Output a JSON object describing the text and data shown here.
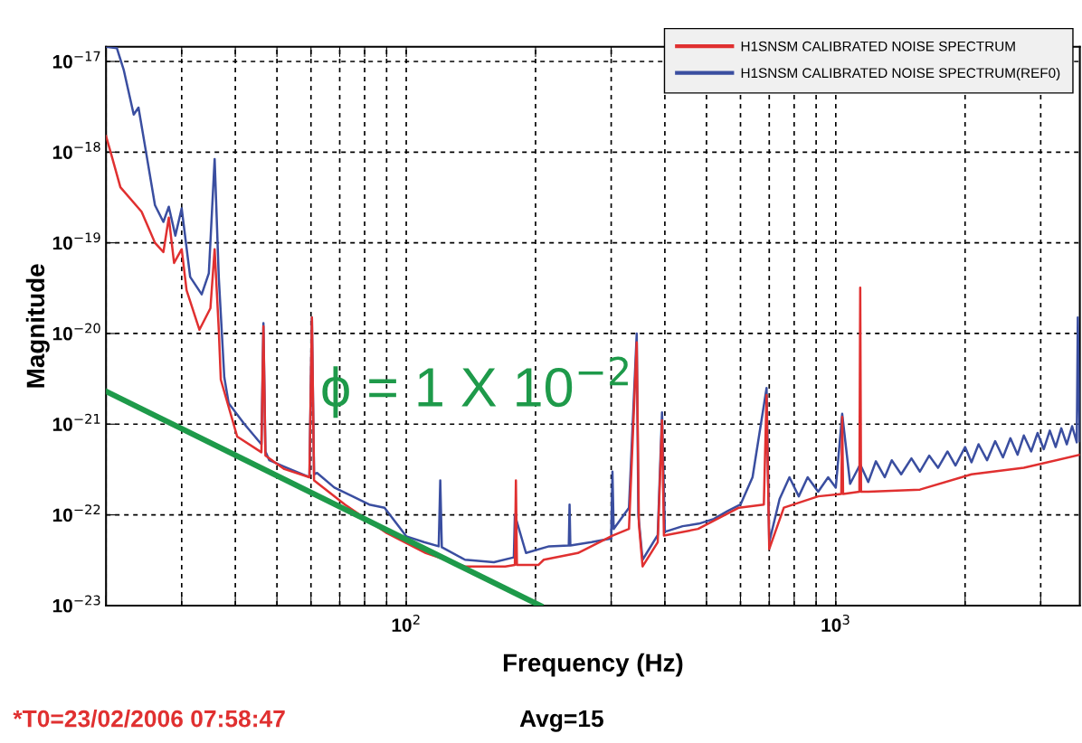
{
  "chart_data": {
    "type": "line",
    "xlabel": "Frequency (Hz)",
    "ylabel": "Magnitude",
    "log": "xy",
    "xlim": [
      20,
      3700
    ],
    "ylim": [
      1e-23,
      1.45e-17
    ],
    "xticks": [
      {
        "value": 20,
        "label": null
      },
      {
        "value": 30,
        "label": null
      },
      {
        "value": 40,
        "label": null
      },
      {
        "value": 50,
        "label": null
      },
      {
        "value": 60,
        "label": null
      },
      {
        "value": 70,
        "label": null
      },
      {
        "value": 80,
        "label": null
      },
      {
        "value": 90,
        "label": null
      },
      {
        "value": 100,
        "label": "10$^{2}$"
      },
      {
        "value": 200,
        "label": null
      },
      {
        "value": 300,
        "label": null
      },
      {
        "value": 400,
        "label": null
      },
      {
        "value": 500,
        "label": null
      },
      {
        "value": 600,
        "label": null
      },
      {
        "value": 700,
        "label": null
      },
      {
        "value": 800,
        "label": null
      },
      {
        "value": 900,
        "label": null
      },
      {
        "value": 1000,
        "label": "10$^{3}$"
      },
      {
        "value": 2000,
        "label": null
      },
      {
        "value": 3000,
        "label": null
      }
    ],
    "yticks": [
      {
        "value": 1e-23,
        "label": "10$^{−23}$"
      },
      {
        "value": 1e-22,
        "label": "10$^{−22}$"
      },
      {
        "value": 1e-21,
        "label": "10$^{−21}$"
      },
      {
        "value": 1e-20,
        "label": "10$^{−20}$"
      },
      {
        "value": 1e-19,
        "label": "10$^{−19}$"
      },
      {
        "value": 1e-18,
        "label": "10$^{−18}$"
      },
      {
        "value": 1e-17,
        "label": "10$^{−17}$"
      }
    ],
    "grid": true,
    "legend": "top right",
    "line_style": "solid",
    "marker": "none",
    "series": [
      {
        "name": "H1SNSM CALIBRATED NOISE SPECTRUM(REF0)",
        "color": "#3a4ea0",
        "x": [
          20,
          21.2,
          22,
          23.2,
          23.8,
          24.7,
          26,
          27.2,
          28,
          29,
          30,
          31.4,
          33.4,
          34.7,
          35.8,
          36.6,
          37.7,
          38.6,
          42,
          46,
          46.5,
          47,
          48,
          52,
          59.5,
          60.3,
          61,
          62,
          68,
          75,
          82,
          89,
          100,
          110,
          119,
          120,
          121,
          137,
          160,
          178,
          179,
          190,
          215,
          239,
          240,
          241,
          270,
          300,
          302,
          304,
          330,
          344,
          347,
          355,
          385,
          394,
          400,
          440,
          480,
          520,
          560,
          600,
          640,
          690,
          700,
          740,
          780,
          820,
          860,
          910,
          960,
          1000,
          1035,
          1080,
          1140,
          1190,
          1240,
          1300,
          1350,
          1420,
          1500,
          1570,
          1650,
          1730,
          1820,
          1900,
          2000,
          2070,
          2150,
          2250,
          2350,
          2450,
          2550,
          2650,
          2740,
          2850,
          2950,
          3050,
          3150,
          3250,
          3350,
          3450,
          3550,
          3640,
          3660,
          3700
        ],
        "values": [
          1.45e-17,
          1.4e-17,
          8e-18,
          2.6e-18,
          3.1e-18,
          1.1e-18,
          2.6e-19,
          1.7e-19,
          2.5e-19,
          1.2e-19,
          2.4e-19,
          4.2e-20,
          2.7e-20,
          4.6e-20,
          8.4e-19,
          4.2e-20,
          3.3e-21,
          1.7e-21,
          1e-21,
          6e-22,
          1.3e-20,
          5e-22,
          4e-22,
          3.4e-22,
          2.6e-22,
          1.5e-20,
          2.8e-22,
          2.9e-22,
          2e-22,
          1.6e-22,
          1.3e-22,
          1.2e-22,
          5.8e-23,
          5e-23,
          4.5e-23,
          2.4e-22,
          4.4e-23,
          3.2e-23,
          3e-23,
          3.4e-23,
          1e-22,
          3.8e-23,
          4.5e-23,
          4.6e-23,
          1.3e-22,
          4.6e-23,
          5e-23,
          5.5e-23,
          3e-22,
          7e-23,
          1.2e-22,
          1e-20,
          1e-22,
          3.2e-23,
          6e-23,
          1.35e-21,
          6.5e-23,
          7.5e-23,
          8e-23,
          9e-23,
          1.1e-22,
          1.3e-22,
          2.6e-22,
          2.5e-21,
          5e-23,
          1.5e-22,
          2.6e-22,
          1.6e-22,
          2.6e-22,
          1.8e-22,
          2.6e-22,
          2e-22,
          1.3e-21,
          2.2e-22,
          3.6e-22,
          2.3e-22,
          3.9e-22,
          2.6e-22,
          4e-22,
          2.8e-22,
          4.2e-22,
          3e-22,
          4.5e-22,
          3.3e-22,
          5e-22,
          3.5e-22,
          5.6e-22,
          3.8e-22,
          6e-22,
          4e-22,
          6.5e-22,
          4.3e-22,
          7e-22,
          4.6e-22,
          7.5e-22,
          5e-22,
          8e-22,
          5.3e-22,
          8.5e-22,
          5.6e-22,
          9e-22,
          6e-22,
          9.5e-22,
          6.3e-22,
          1.5e-20,
          6.5e-22
        ]
      },
      {
        "name": "H1SNSM CALIBRATED NOISE SPECTRUM",
        "color": "#e03030",
        "x": [
          20,
          20.5,
          21.6,
          24.2,
          26,
          27.2,
          28,
          28.8,
          30,
          30.8,
          33,
          35,
          35.8,
          36.6,
          37,
          40.4,
          46,
          46.5,
          47,
          52,
          59.5,
          60.3,
          61,
          72,
          90,
          111,
          137,
          170,
          179,
          180,
          181,
          203,
          209,
          251,
          302,
          330,
          344,
          348,
          355,
          385,
          394,
          398,
          478,
          595,
          680,
          690,
          700,
          757,
          910,
          1030,
          1035,
          1040,
          1135,
          1140,
          1145,
          1190,
          1570,
          2070,
          2740,
          3700
        ],
        "values": [
          1.5e-18,
          1e-18,
          4.1e-19,
          2.2e-19,
          1e-19,
          7.9e-20,
          1.9e-19,
          6e-20,
          8.5e-20,
          3e-20,
          1.1e-20,
          1.9e-20,
          8.5e-20,
          1.1e-20,
          3.1e-21,
          7.3e-22,
          4.9e-22,
          1.2e-20,
          4.5e-22,
          3.2e-22,
          2.6e-22,
          1.5e-20,
          2.4e-22,
          1.3e-22,
          6.3e-23,
          3.8e-23,
          2.7e-23,
          2.7e-23,
          2.8e-23,
          2.4e-22,
          2.8e-23,
          2.8e-23,
          3.2e-23,
          3.8e-23,
          5.9e-23,
          7e-23,
          8e-21,
          8e-23,
          2.7e-23,
          5e-23,
          1.1e-21,
          5.9e-23,
          7e-23,
          1.2e-22,
          1.3e-22,
          2.1e-21,
          4.2e-23,
          1.2e-22,
          1.6e-22,
          1.7e-22,
          1.2e-21,
          1.7e-22,
          1.8e-22,
          3.2e-20,
          1.8e-22,
          1.8e-22,
          1.9e-22,
          2.8e-22,
          3.3e-22,
          4.6e-22
        ]
      },
      {
        "color": "#1e9a4a",
        "x": [
          20,
          205
        ],
        "values": [
          2.3e-21,
          1e-23
        ]
      }
    ],
    "annotations": [
      "ϕ = 1 X 10$^{−2}$",
      "*T0=23/02/2006 07:58:47",
      "Avg=15"
    ]
  }
}
